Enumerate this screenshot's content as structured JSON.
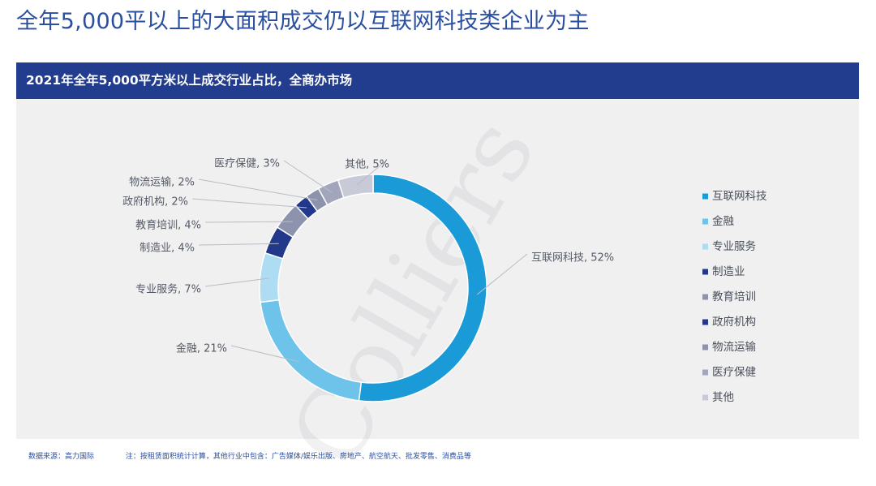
{
  "page": {
    "title": "全年5,000平以上的大面积成交仍以互联网科技类企业为主",
    "panel_title": "2021年全年5,000平方米以上成交行业占比，全商办市场",
    "watermark": "Colliers",
    "source_note": "数据来源：高力国际",
    "footnote": "注：按租赁面积统计计算，其他行业中包含：广告媒体/娱乐出版、房地产、航空航天、批发零售、消费品等"
  },
  "chart_data": {
    "type": "pie",
    "donut": true,
    "title": "2021年全年5,000平方米以上成交行业占比，全商办市场",
    "legend_position": "right",
    "slices": [
      {
        "name": "互联网科技",
        "value": 52,
        "label": "互联网科技, 52%",
        "color": "#1a9ad6"
      },
      {
        "name": "金融",
        "value": 21,
        "label": "金融, 21%",
        "color": "#6ec3ea"
      },
      {
        "name": "专业服务",
        "value": 7,
        "label": "专业服务, 7%",
        "color": "#aedcf3"
      },
      {
        "name": "制造业",
        "value": 4,
        "label": "制造业, 4%",
        "color": "#22388a"
      },
      {
        "name": "教育培训",
        "value": 4,
        "label": "教育培训, 4%",
        "color": "#8e93ad"
      },
      {
        "name": "政府机构",
        "value": 2,
        "label": "政府机构, 2%",
        "color": "#22388a"
      },
      {
        "name": "物流运输",
        "value": 2,
        "label": "物流运输, 2%",
        "color": "#8e93ad"
      },
      {
        "name": "医疗保健",
        "value": 3,
        "label": "医疗保健, 3%",
        "color": "#a2a6bd"
      },
      {
        "name": "其他",
        "value": 5,
        "label": "其他, 5%",
        "color": "#c8cad8"
      }
    ]
  }
}
